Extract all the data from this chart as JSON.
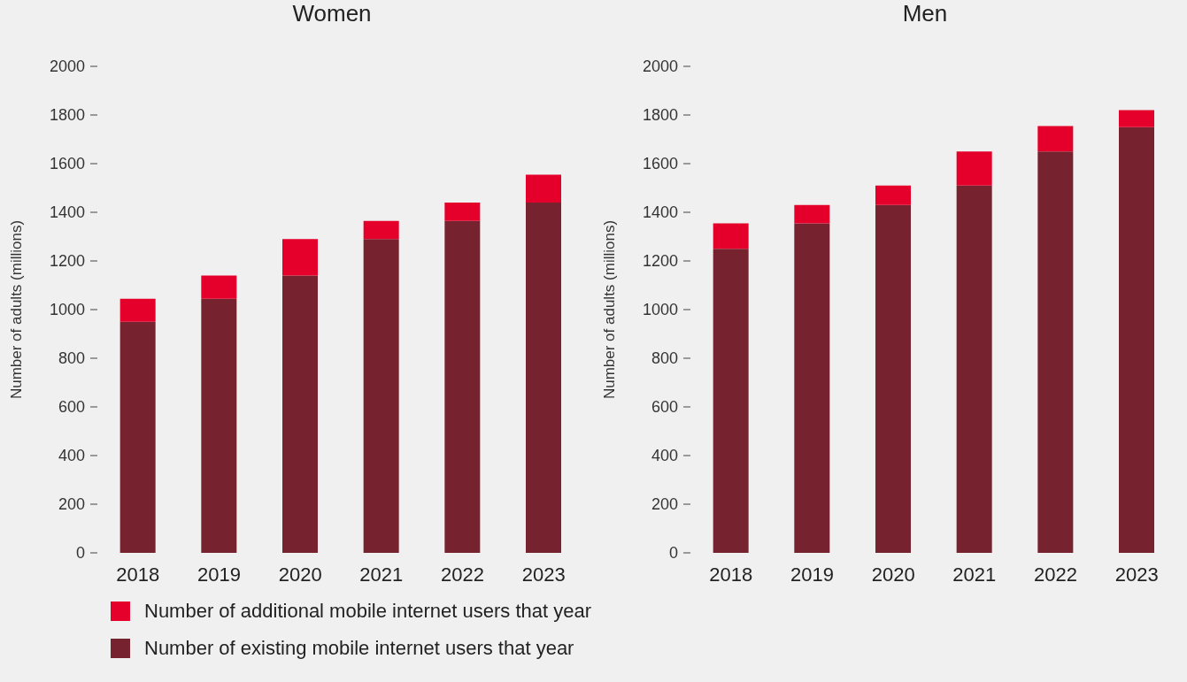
{
  "chart_data": [
    {
      "type": "bar",
      "title": "Women",
      "ylabel": "Number of adults (millions)",
      "categories": [
        "2018",
        "2019",
        "2020",
        "2021",
        "2022",
        "2023"
      ],
      "stacked": true,
      "ylim": [
        0,
        2000
      ],
      "yticks": [
        0,
        200,
        400,
        600,
        800,
        1000,
        1200,
        1400,
        1600,
        1800,
        2000
      ],
      "grid": false,
      "legend": "bottom left",
      "series": [
        {
          "name": "Number of existing mobile internet users that year",
          "color": "#76232f",
          "values": [
            950,
            1045,
            1140,
            1290,
            1365,
            1440
          ]
        },
        {
          "name": "Number of additional mobile internet users that year",
          "color": "#e4002b",
          "values": [
            95,
            95,
            150,
            75,
            75,
            115
          ]
        }
      ]
    },
    {
      "type": "bar",
      "title": "Men",
      "ylabel": "Number of adults (millions)",
      "categories": [
        "2018",
        "2019",
        "2020",
        "2021",
        "2022",
        "2023"
      ],
      "stacked": true,
      "ylim": [
        0,
        2000
      ],
      "yticks": [
        0,
        200,
        400,
        600,
        800,
        1000,
        1200,
        1400,
        1600,
        1800,
        2000
      ],
      "grid": false,
      "series": [
        {
          "color": "#76232f",
          "values": [
            1250,
            1355,
            1430,
            1510,
            1650,
            1750
          ]
        },
        {
          "color": "#e4002b",
          "values": [
            105,
            75,
            80,
            140,
            105,
            70
          ]
        }
      ]
    }
  ]
}
